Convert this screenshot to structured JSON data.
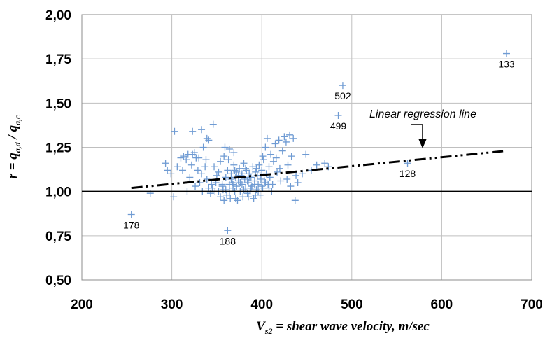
{
  "chart_data": {
    "type": "scatter",
    "title": "",
    "xlabel": {
      "symbol": "V",
      "subscript": "s2",
      "text": " = shear wave velocity",
      "unit": ", m/sec"
    },
    "ylabel": {
      "parts": [
        {
          "t": "r = q",
          "sub": false
        },
        {
          "t": "a,d",
          "sub": true
        },
        {
          "t": " / q",
          "sub": false
        },
        {
          "t": "a,c",
          "sub": true
        }
      ]
    },
    "xlim": [
      200,
      700
    ],
    "ylim": [
      0.5,
      2.0
    ],
    "xticks": [
      200,
      300,
      400,
      500,
      600,
      700
    ],
    "xtick_labels": [
      "200",
      "300",
      "400",
      "500",
      "600",
      "700"
    ],
    "yticks": [
      0.5,
      0.75,
      1.0,
      1.25,
      1.5,
      1.75,
      2.0
    ],
    "ytick_labels": [
      "0,50",
      "0,75",
      "1,00",
      "1,25",
      "1,50",
      "1,75",
      "2,00"
    ],
    "grid": true,
    "marker": "plus",
    "marker_color": "#6f9bd3",
    "reference_line": {
      "y": 1.0,
      "style": "solid",
      "color": "#000000"
    },
    "regression_line": {
      "label": "Linear regression line",
      "style": "dash-dot-dot",
      "color": "#000000",
      "points": [
        [
          255,
          1.02
        ],
        [
          672,
          1.23
        ]
      ]
    },
    "labeled_points": [
      {
        "label": "133",
        "x": 672,
        "y": 1.78
      },
      {
        "label": "502",
        "x": 490,
        "y": 1.6
      },
      {
        "label": "499",
        "x": 485,
        "y": 1.43
      },
      {
        "label": "128",
        "x": 562,
        "y": 1.16
      },
      {
        "label": "178",
        "x": 255,
        "y": 0.87
      },
      {
        "label": "188",
        "x": 362,
        "y": 0.78
      }
    ],
    "points": [
      [
        672,
        1.78
      ],
      [
        490,
        1.6
      ],
      [
        485,
        1.43
      ],
      [
        562,
        1.16
      ],
      [
        255,
        0.87
      ],
      [
        362,
        0.78
      ],
      [
        303,
        1.34
      ],
      [
        323,
        1.34
      ],
      [
        333,
        1.35
      ],
      [
        346,
        1.38
      ],
      [
        339,
        1.3
      ],
      [
        341,
        1.29
      ],
      [
        293,
        1.16
      ],
      [
        295,
        1.12
      ],
      [
        299,
        1.1
      ],
      [
        302,
        0.97
      ],
      [
        276,
        0.99
      ],
      [
        306,
        1.14
      ],
      [
        310,
        1.19
      ],
      [
        312,
        1.12
      ],
      [
        313,
        1.2
      ],
      [
        316,
        1.18
      ],
      [
        318,
        1.21
      ],
      [
        320,
        1.08
      ],
      [
        322,
        1.15
      ],
      [
        323,
        1.21
      ],
      [
        325,
        1.22
      ],
      [
        327,
        1.19
      ],
      [
        329,
        1.12
      ],
      [
        330,
        1.19
      ],
      [
        331,
        1.05
      ],
      [
        333,
        1.1
      ],
      [
        335,
        1.25
      ],
      [
        337,
        1.14
      ],
      [
        339,
        1.07
      ],
      [
        341,
        1.02
      ],
      [
        343,
        0.99
      ],
      [
        345,
        1.02
      ],
      [
        347,
        1.14
      ],
      [
        349,
        1.05
      ],
      [
        350,
        1.09
      ],
      [
        352,
        1.11
      ],
      [
        354,
        1.17
      ],
      [
        356,
        1.04
      ],
      [
        357,
        1.01
      ],
      [
        358,
        1.2
      ],
      [
        359,
        1.25
      ],
      [
        360,
        1.08
      ],
      [
        361,
        0.98
      ],
      [
        362,
        1.12
      ],
      [
        363,
        1.18
      ],
      [
        364,
        1.04
      ],
      [
        365,
        0.96
      ],
      [
        366,
        1.1
      ],
      [
        367,
        1.05
      ],
      [
        368,
        1.02
      ],
      [
        369,
        1.15
      ],
      [
        370,
        1.0
      ],
      [
        371,
        1.08
      ],
      [
        372,
        1.11
      ],
      [
        373,
        0.95
      ],
      [
        374,
        1.06
      ],
      [
        375,
        1.13
      ],
      [
        376,
        1.0
      ],
      [
        377,
        1.09
      ],
      [
        378,
        1.04
      ],
      [
        379,
        0.97
      ],
      [
        380,
        1.16
      ],
      [
        381,
        1.07
      ],
      [
        382,
        1.02
      ],
      [
        383,
        1.12
      ],
      [
        384,
        0.99
      ],
      [
        385,
        1.05
      ],
      [
        386,
        1.1
      ],
      [
        387,
        1.0
      ],
      [
        388,
        1.08
      ],
      [
        389,
        1.03
      ],
      [
        390,
        1.14
      ],
      [
        391,
        0.96
      ],
      [
        392,
        1.06
      ],
      [
        393,
        1.11
      ],
      [
        394,
        1.01
      ],
      [
        395,
        1.09
      ],
      [
        396,
        1.04
      ],
      [
        397,
        1.15
      ],
      [
        398,
        0.98
      ],
      [
        399,
        1.07
      ],
      [
        400,
        1.12
      ],
      [
        401,
        1.02
      ],
      [
        402,
        1.18
      ],
      [
        403,
        1.06
      ],
      [
        404,
        1.25
      ],
      [
        405,
        1.1
      ],
      [
        406,
        1.3
      ],
      [
        407,
        1.04
      ],
      [
        408,
        1.14
      ],
      [
        409,
        1.08
      ],
      [
        410,
        1.21
      ],
      [
        411,
        1.0
      ],
      [
        413,
        1.17
      ],
      [
        415,
        1.27
      ],
      [
        417,
        1.11
      ],
      [
        419,
        1.29
      ],
      [
        421,
        1.06
      ],
      [
        423,
        1.23
      ],
      [
        425,
        1.31
      ],
      [
        427,
        1.28
      ],
      [
        429,
        1.15
      ],
      [
        431,
        1.32
      ],
      [
        433,
        1.2
      ],
      [
        435,
        1.3
      ],
      [
        437,
        0.95
      ],
      [
        438,
        1.09
      ],
      [
        440,
        1.05
      ],
      [
        445,
        1.1
      ],
      [
        449,
        1.21
      ],
      [
        455,
        1.12
      ],
      [
        461,
        1.15
      ],
      [
        470,
        1.16
      ],
      [
        474,
        1.14
      ],
      [
        352,
        1.0
      ],
      [
        356,
        1.03
      ],
      [
        360,
        1.01
      ],
      [
        364,
        1.0
      ],
      [
        368,
        1.04
      ],
      [
        372,
        1.03
      ],
      [
        376,
        1.05
      ],
      [
        380,
        1.01
      ],
      [
        384,
        1.06
      ],
      [
        388,
        1.02
      ],
      [
        392,
        1.04
      ],
      [
        396,
        1.0
      ],
      [
        400,
        1.03
      ],
      [
        404,
        1.05
      ],
      [
        408,
        1.02
      ],
      [
        412,
        1.04
      ],
      [
        378,
        1.1
      ],
      [
        382,
        1.13
      ],
      [
        386,
        1.08
      ],
      [
        366,
        1.07
      ],
      [
        370,
        1.12
      ],
      [
        374,
        1.09
      ],
      [
        394,
        1.13
      ],
      [
        398,
        1.09
      ],
      [
        354,
        0.97
      ],
      [
        358,
        0.95
      ],
      [
        371,
        0.96
      ],
      [
        385,
        0.97
      ],
      [
        393,
        0.98
      ],
      [
        364,
        1.24
      ],
      [
        369,
        1.22
      ],
      [
        401,
        1.2
      ],
      [
        416,
        1.19
      ],
      [
        420,
        1.13
      ],
      [
        428,
        1.07
      ],
      [
        432,
        1.03
      ],
      [
        317,
        1.0
      ],
      [
        326,
        1.03
      ],
      [
        334,
        1.0
      ],
      [
        344,
        1.04
      ],
      [
        348,
        1.0
      ],
      [
        338,
        1.18
      ]
    ]
  }
}
